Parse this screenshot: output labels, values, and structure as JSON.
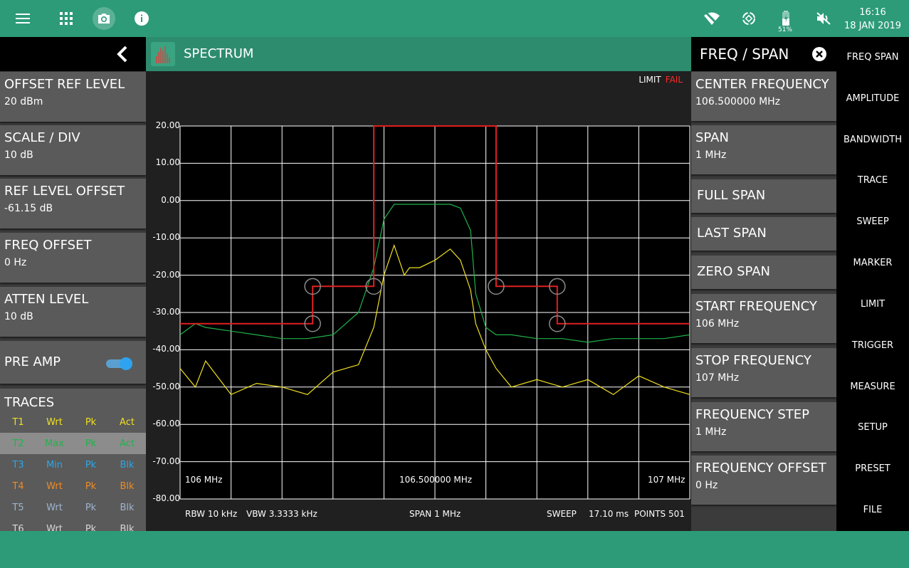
{
  "status_bar": {
    "time": "16:16",
    "date": "18 JAN 2019",
    "battery_percent": "51%",
    "icons": [
      "menu-icon",
      "apps-grid-icon",
      "camera-icon",
      "info-icon",
      "wifi-off-icon",
      "rotation-lock-icon",
      "battery-icon",
      "volume-mute-icon"
    ]
  },
  "left_panel": {
    "items": [
      {
        "title": "OFFSET REF LEVEL",
        "value": "20 dBm"
      },
      {
        "title": "SCALE / DIV",
        "value": "10 dB"
      },
      {
        "title": "REF LEVEL OFFSET",
        "value": "-61.15 dB"
      },
      {
        "title": "FREQ OFFSET",
        "value": "0 Hz"
      },
      {
        "title": "ATTEN LEVEL",
        "value": "10 dB"
      }
    ],
    "pre_amp": {
      "label": "PRE AMP",
      "on": true
    },
    "traces": {
      "title": "TRACES",
      "rows": [
        {
          "id": "T1",
          "type": "Wrt",
          "det": "Pk",
          "state": "Act",
          "color": "#f0e020",
          "selected": false
        },
        {
          "id": "T2",
          "type": "Max",
          "det": "Pk",
          "state": "Act",
          "color": "#1fb34a",
          "selected": true
        },
        {
          "id": "T3",
          "type": "Min",
          "det": "Pk",
          "state": "Blk",
          "color": "#2aa7e8",
          "selected": false
        },
        {
          "id": "T4",
          "type": "Wrt",
          "det": "Pk",
          "state": "Blk",
          "color": "#f08a24",
          "selected": false
        },
        {
          "id": "T5",
          "type": "Wrt",
          "det": "Pk",
          "state": "Blk",
          "color": "#9fb4d0",
          "selected": false
        },
        {
          "id": "T6",
          "type": "Wrt",
          "det": "Pk",
          "state": "Blk",
          "color": "#d8d8d8",
          "selected": false
        }
      ]
    }
  },
  "spectrum": {
    "title": "SPECTRUM",
    "limit_label": "LIMIT",
    "limit_status": "FAIL",
    "colors": {
      "trace_yellow": "#f0e020",
      "trace_green": "#1fb34a",
      "limit_red": "#e02020",
      "grid": "#ffffff"
    },
    "y_ticks": [
      "20.00",
      "10.00",
      "0.00",
      "-10.00",
      "-20.00",
      "-30.00",
      "-40.00",
      "-50.00",
      "-60.00",
      "-70.00",
      "-80.00"
    ],
    "x_start": "106 MHz",
    "x_center": "106.500000 MHz",
    "x_stop": "107 MHz",
    "rbw": "RBW 10 kHz",
    "vbw": "VBW 3.3333 kHz",
    "span": "SPAN 1 MHz",
    "sweep_label": "SWEEP",
    "sweep_time": "17.10 ms",
    "points": "POINTS 501"
  },
  "chart_data": {
    "type": "line",
    "x_unit": "MHz",
    "ylim": [
      -80,
      20
    ],
    "xlim": [
      106.0,
      107.0
    ],
    "series": [
      {
        "color": "#1fb34a",
        "x": [
          106.0,
          106.03,
          106.05,
          106.1,
          106.15,
          106.2,
          106.25,
          106.3,
          106.35,
          106.38,
          106.4,
          106.42,
          106.44,
          106.45,
          106.47,
          106.5,
          106.53,
          106.55,
          106.57,
          106.58,
          106.6,
          106.62,
          106.65,
          106.7,
          106.75,
          106.8,
          106.85,
          106.9,
          106.95,
          107.0
        ],
        "y": [
          -36,
          -33,
          -34,
          -35,
          -36,
          -37,
          -37,
          -36,
          -30,
          -18,
          -5,
          -1,
          -1,
          -1,
          -1,
          -1,
          -1,
          -2,
          -8,
          -25,
          -34,
          -36,
          -36,
          -37,
          -37,
          -38,
          -37,
          -37,
          -37,
          -36
        ]
      },
      {
        "color": "#f0e020",
        "x": [
          106.0,
          106.03,
          106.05,
          106.1,
          106.15,
          106.2,
          106.25,
          106.3,
          106.35,
          106.38,
          106.4,
          106.42,
          106.44,
          106.45,
          106.47,
          106.5,
          106.53,
          106.55,
          106.57,
          106.58,
          106.6,
          106.62,
          106.65,
          106.7,
          106.75,
          106.8,
          106.85,
          106.9,
          106.95,
          107.0
        ],
        "y": [
          -45,
          -50,
          -43,
          -52,
          -49,
          -50,
          -52,
          -46,
          -44,
          -34,
          -20,
          -12,
          -20,
          -18,
          -18,
          -16,
          -13,
          -16,
          -24,
          -33,
          -40,
          -45,
          -50,
          -48,
          -50,
          -48,
          -52,
          -47,
          -50,
          -52
        ]
      },
      {
        "color": "#e02020",
        "x": [
          106.0,
          106.26,
          106.26,
          106.38,
          106.38,
          106.62,
          106.62,
          106.74,
          106.74,
          107.0
        ],
        "y": [
          -33,
          -33,
          -23,
          -23,
          20,
          20,
          -23,
          -23,
          -33,
          -33
        ]
      }
    ]
  },
  "right_menu": {
    "title": "FREQ / SPAN",
    "items": [
      {
        "title": "CENTER FREQUENCY",
        "value": "106.500000 MHz"
      },
      {
        "title": "SPAN",
        "value": "1 MHz"
      },
      {
        "title": "FULL SPAN",
        "value": ""
      },
      {
        "title": "LAST SPAN",
        "value": ""
      },
      {
        "title": "ZERO SPAN",
        "value": ""
      },
      {
        "title": "START FREQUENCY",
        "value": "106 MHz"
      },
      {
        "title": "STOP FREQUENCY",
        "value": "107 MHz"
      },
      {
        "title": "FREQUENCY STEP",
        "value": "1 MHz"
      },
      {
        "title": "FREQUENCY OFFSET",
        "value": "0 Hz"
      }
    ]
  },
  "tabs": [
    "FREQ SPAN",
    "AMPLITUDE",
    "BANDWIDTH",
    "TRACE",
    "SWEEP",
    "MARKER",
    "LIMIT",
    "TRIGGER",
    "MEASURE",
    "SETUP",
    "PRESET",
    "FILE"
  ]
}
